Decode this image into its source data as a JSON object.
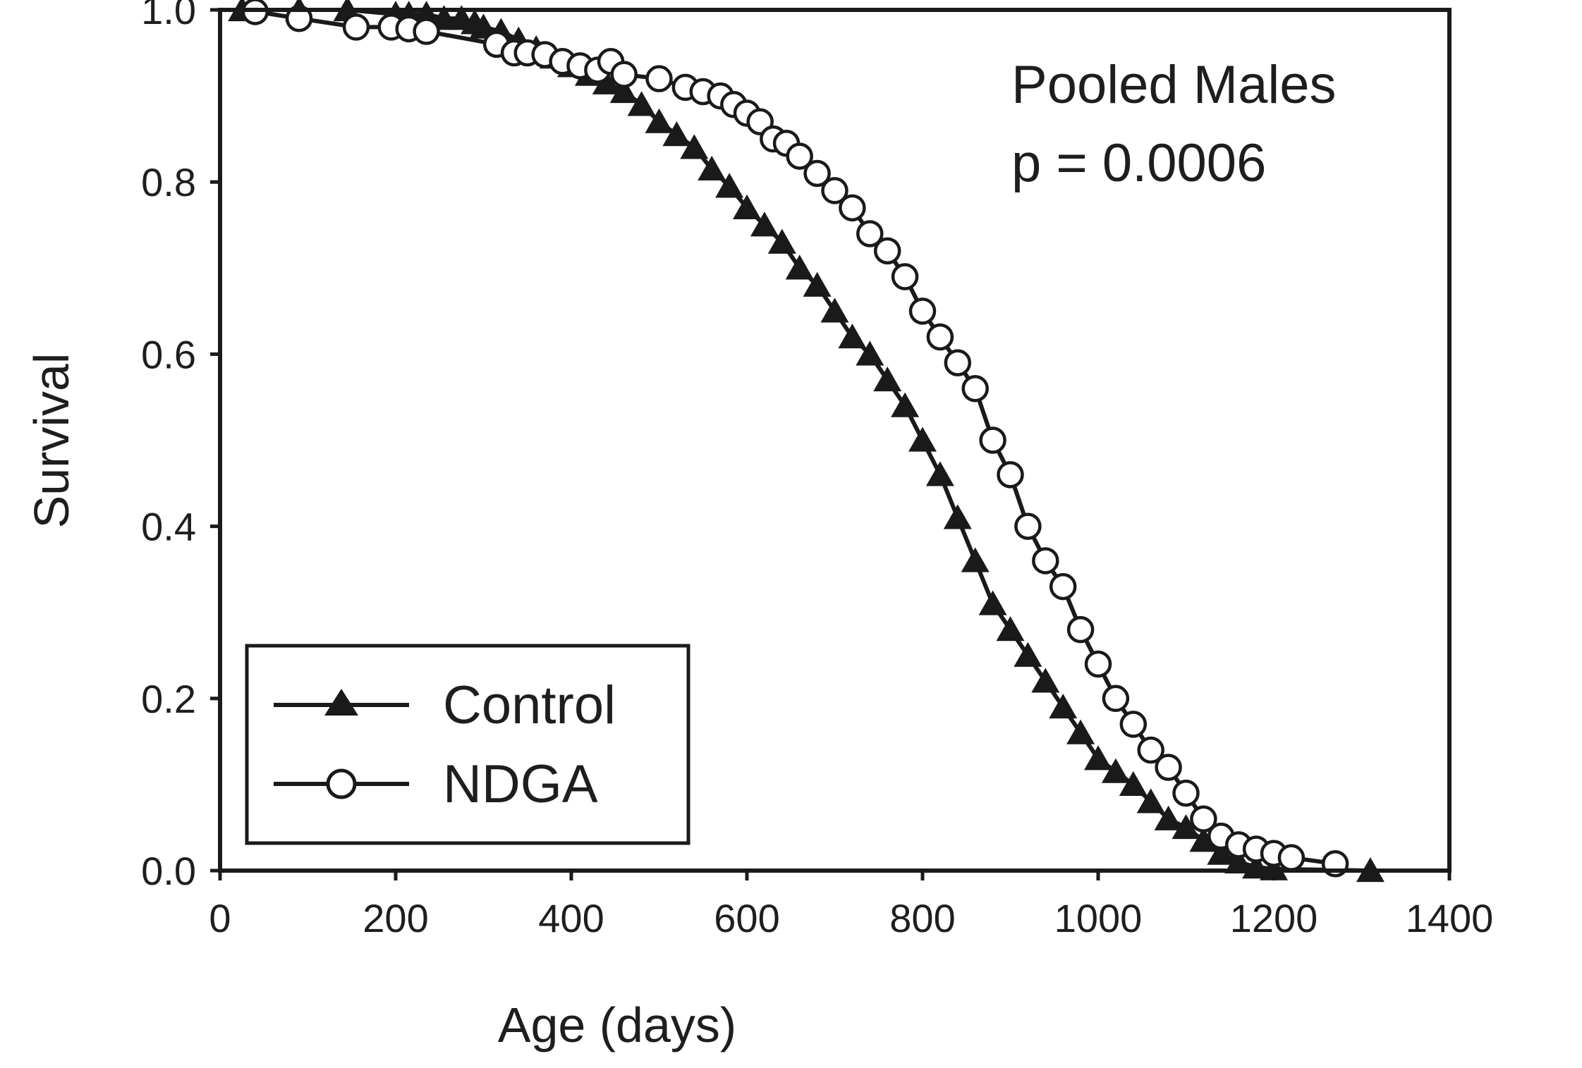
{
  "chart_data": {
    "type": "line",
    "xlabel": "Age (days)",
    "ylabel": "Survival",
    "xlim": [
      0,
      1400
    ],
    "ylim": [
      0,
      1
    ],
    "xticks": [
      0,
      200,
      400,
      600,
      800,
      1000,
      1200,
      1400
    ],
    "yticks": [
      0.0,
      0.2,
      0.4,
      0.6,
      0.8,
      1.0
    ],
    "xtick_labels": [
      "0",
      "200",
      "400",
      "600",
      "800",
      "1000",
      "1200",
      "1400"
    ],
    "ytick_labels": [
      "0.0",
      "0.2",
      "0.4",
      "0.6",
      "0.8",
      "1.0"
    ],
    "annotations": [
      "Pooled Males",
      "p = 0.0006"
    ],
    "legend": {
      "position": "bottom-left",
      "entries": [
        "Control",
        "NDGA"
      ]
    },
    "grid": false,
    "series": [
      {
        "name": "Control",
        "marker": "filled-triangle",
        "color": "#1a1a1a",
        "points": [
          [
            25,
            1.0
          ],
          [
            90,
            1.0
          ],
          [
            145,
            1.0
          ],
          [
            200,
            0.995
          ],
          [
            215,
            0.995
          ],
          [
            235,
            0.995
          ],
          [
            255,
            0.99
          ],
          [
            275,
            0.99
          ],
          [
            290,
            0.985
          ],
          [
            300,
            0.98
          ],
          [
            320,
            0.975
          ],
          [
            340,
            0.965
          ],
          [
            360,
            0.955
          ],
          [
            380,
            0.945
          ],
          [
            400,
            0.935
          ],
          [
            420,
            0.925
          ],
          [
            440,
            0.915
          ],
          [
            460,
            0.905
          ],
          [
            480,
            0.89
          ],
          [
            500,
            0.87
          ],
          [
            520,
            0.855
          ],
          [
            540,
            0.84
          ],
          [
            560,
            0.815
          ],
          [
            580,
            0.795
          ],
          [
            600,
            0.77
          ],
          [
            620,
            0.75
          ],
          [
            640,
            0.73
          ],
          [
            660,
            0.7
          ],
          [
            680,
            0.68
          ],
          [
            700,
            0.65
          ],
          [
            720,
            0.62
          ],
          [
            740,
            0.6
          ],
          [
            760,
            0.57
          ],
          [
            780,
            0.54
          ],
          [
            800,
            0.5
          ],
          [
            820,
            0.46
          ],
          [
            840,
            0.41
          ],
          [
            860,
            0.36
          ],
          [
            880,
            0.31
          ],
          [
            900,
            0.28
          ],
          [
            920,
            0.25
          ],
          [
            940,
            0.22
          ],
          [
            960,
            0.19
          ],
          [
            980,
            0.16
          ],
          [
            1000,
            0.13
          ],
          [
            1020,
            0.115
          ],
          [
            1040,
            0.1
          ],
          [
            1060,
            0.08
          ],
          [
            1080,
            0.06
          ],
          [
            1100,
            0.05
          ],
          [
            1120,
            0.035
          ],
          [
            1140,
            0.02
          ],
          [
            1160,
            0.01
          ],
          [
            1180,
            0.004
          ],
          [
            1200,
            0.002
          ],
          [
            1310,
            0.0
          ]
        ]
      },
      {
        "name": "NDGA",
        "marker": "open-circle",
        "color": "#1a1a1a",
        "points": [
          [
            40,
            0.998
          ],
          [
            90,
            0.99
          ],
          [
            155,
            0.98
          ],
          [
            195,
            0.98
          ],
          [
            215,
            0.978
          ],
          [
            235,
            0.975
          ],
          [
            315,
            0.96
          ],
          [
            335,
            0.95
          ],
          [
            350,
            0.95
          ],
          [
            370,
            0.948
          ],
          [
            390,
            0.94
          ],
          [
            410,
            0.935
          ],
          [
            430,
            0.93
          ],
          [
            445,
            0.94
          ],
          [
            460,
            0.925
          ],
          [
            500,
            0.92
          ],
          [
            530,
            0.91
          ],
          [
            550,
            0.905
          ],
          [
            570,
            0.9
          ],
          [
            585,
            0.89
          ],
          [
            600,
            0.88
          ],
          [
            615,
            0.87
          ],
          [
            630,
            0.85
          ],
          [
            645,
            0.845
          ],
          [
            660,
            0.83
          ],
          [
            680,
            0.81
          ],
          [
            700,
            0.79
          ],
          [
            720,
            0.77
          ],
          [
            740,
            0.74
          ],
          [
            760,
            0.72
          ],
          [
            780,
            0.69
          ],
          [
            800,
            0.65
          ],
          [
            820,
            0.62
          ],
          [
            840,
            0.59
          ],
          [
            860,
            0.56
          ],
          [
            880,
            0.5
          ],
          [
            900,
            0.46
          ],
          [
            920,
            0.4
          ],
          [
            940,
            0.36
          ],
          [
            960,
            0.33
          ],
          [
            980,
            0.28
          ],
          [
            1000,
            0.24
          ],
          [
            1020,
            0.2
          ],
          [
            1040,
            0.17
          ],
          [
            1060,
            0.14
          ],
          [
            1080,
            0.12
          ],
          [
            1100,
            0.09
          ],
          [
            1120,
            0.06
          ],
          [
            1140,
            0.04
          ],
          [
            1160,
            0.03
          ],
          [
            1180,
            0.025
          ],
          [
            1200,
            0.02
          ],
          [
            1220,
            0.015
          ],
          [
            1270,
            0.008
          ]
        ]
      }
    ]
  }
}
